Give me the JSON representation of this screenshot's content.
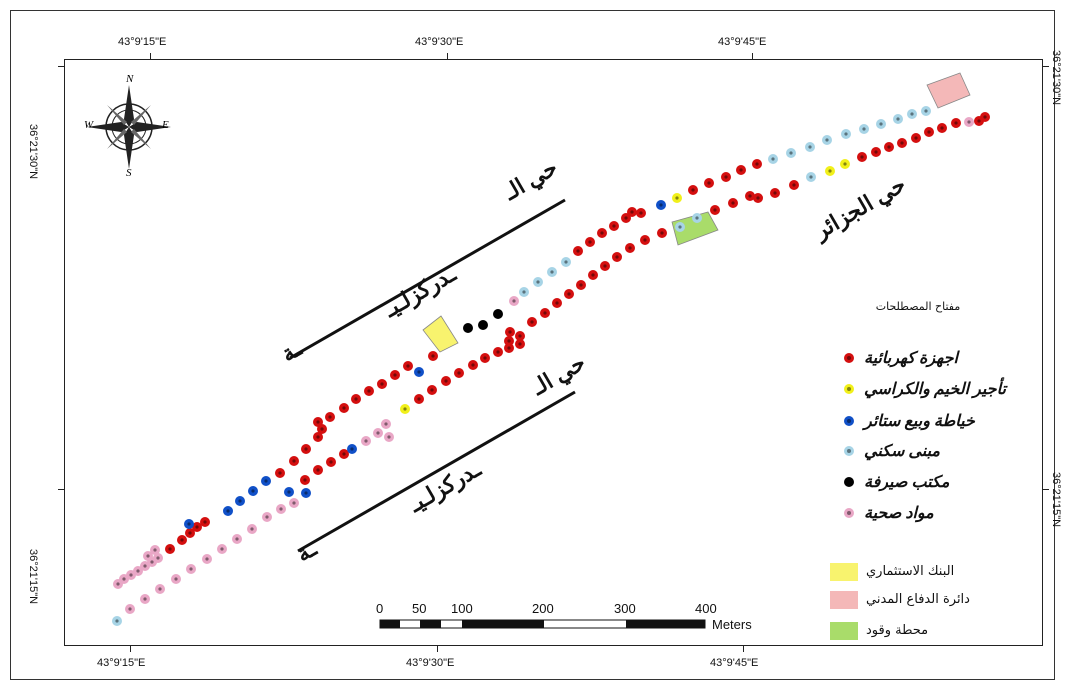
{
  "coordinates": {
    "top": [
      "43°9'15\"E",
      "43°9'30\"E",
      "43°9'45\"E"
    ],
    "bottom": [
      "43°9'15\"E",
      "43°9'30\"E",
      "43°9'45\"E"
    ],
    "left": [
      "36°21'30\"N",
      "36°21'15\"N"
    ],
    "right": [
      "36°21'30\"N",
      "36°21'15\"N"
    ]
  },
  "north_arrow": {
    "n": "N",
    "s": "S",
    "e": "E",
    "w": "W"
  },
  "neighborhoods": {
    "north_part1": "حي الـ",
    "north_part2": "ـدركزلـيـ",
    "north_part3": "ـة",
    "south_part1": "حي الـ",
    "south_part2": "ـدركزلـيـ",
    "south_part3": "ـة",
    "jazair": "حي الجزائر"
  },
  "legend": {
    "title": "مفتاح المصطلحات",
    "items": [
      {
        "label": "اجهزة كهربائية",
        "color": "#d40f0f",
        "symbol": "dot"
      },
      {
        "label": "تأجير الخيم والكراسي",
        "color": "#f1f01a",
        "symbol": "dot"
      },
      {
        "label": "خياطة وبيع ستائر",
        "color": "#1050c8",
        "symbol": "dot"
      },
      {
        "label": "مبنى سكني",
        "color": "#a7d4e6",
        "symbol": "dot"
      },
      {
        "label": "مكتب صيرفة",
        "color": "#000000",
        "symbol": "dot"
      },
      {
        "label": "مواد صحية",
        "color": "#e9a7c6",
        "symbol": "dot"
      },
      {
        "label": "البنك الاستثماري",
        "color": "#f8f36e",
        "symbol": "rect"
      },
      {
        "label": "دائرة الدفاع المدني",
        "color": "#f4b8b8",
        "symbol": "rect"
      },
      {
        "label": "محطة وقود",
        "color": "#a9dc6a",
        "symbol": "rect"
      }
    ]
  },
  "scale_bar": {
    "labels": [
      "0",
      "50",
      "100",
      "200",
      "300",
      "400"
    ],
    "unit": "Meters"
  }
}
